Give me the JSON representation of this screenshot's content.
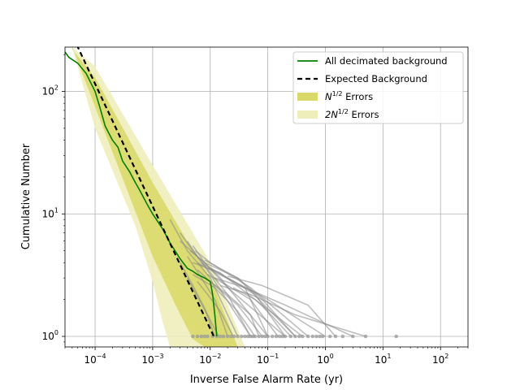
{
  "chart_data": {
    "type": "line",
    "xlabel": "Inverse False Alarm Rate (yr)",
    "ylabel": "Cumulative Number",
    "xscale": "log",
    "yscale": "log",
    "xlim": [
      3e-05,
      300
    ],
    "ylim": [
      0.82,
      230
    ],
    "grid": true,
    "legend_position": "top-right",
    "x_ticks": [
      {
        "value": 0.0001,
        "base": "10",
        "exp": "−4"
      },
      {
        "value": 0.001,
        "base": "10",
        "exp": "−3"
      },
      {
        "value": 0.01,
        "base": "10",
        "exp": "−2"
      },
      {
        "value": 0.1,
        "base": "10",
        "exp": "−1"
      },
      {
        "value": 1,
        "base": "10",
        "exp": "0"
      },
      {
        "value": 10,
        "base": "10",
        "exp": "1"
      },
      {
        "value": 100,
        "base": "10",
        "exp": "2"
      }
    ],
    "y_ticks": [
      {
        "value": 1,
        "base": "10",
        "exp": "0"
      },
      {
        "value": 10,
        "base": "10",
        "exp": "1"
      },
      {
        "value": 100,
        "base": "10",
        "exp": "2"
      }
    ],
    "legend": [
      {
        "label": "All decimated background",
        "kind": "line",
        "color": "#008000"
      },
      {
        "label": "Expected Background",
        "kind": "dashed",
        "color": "#000000"
      },
      {
        "base": "N",
        "exp": "1/2",
        "tail": " Errors",
        "kind": "band",
        "color": "#d9d96a"
      },
      {
        "base": "2N",
        "exp": "1/2",
        "tail": " Errors",
        "kind": "band",
        "color": "#eeeebb"
      }
    ],
    "series": [
      {
        "name": "All decimated background",
        "color": "#008000",
        "x": [
          3e-05,
          3.5e-05,
          5e-05,
          7e-05,
          0.0001,
          0.00012,
          0.00015,
          0.0002,
          0.00025,
          0.0003,
          0.0004,
          0.0005,
          0.0006,
          0.0008,
          0.001,
          0.0015,
          0.002,
          0.003,
          0.004,
          0.005,
          0.006,
          0.008,
          0.01,
          0.011,
          0.012,
          0.013
        ],
        "y": [
          210,
          190,
          170,
          140,
          100,
          75,
          52,
          40,
          35,
          27,
          22,
          18,
          15.5,
          12,
          10,
          7.5,
          5.8,
          4.3,
          3.6,
          3.4,
          3.2,
          3.0,
          2.8,
          2.2,
          1.5,
          1.0
        ]
      },
      {
        "name": "Expected Background",
        "color": "#000000",
        "x": [
          4.8e-05,
          0.012
        ],
        "y": [
          240,
          0.96
        ]
      }
    ],
    "error_bands": [
      {
        "label_key": "N",
        "color": "#d9d96a",
        "upper": {
          "x": [
            4e-05,
            0.0001,
            0.001,
            0.005,
            0.01,
            0.03
          ],
          "y": [
            220,
            130,
            18,
            5,
            3,
            0.82
          ]
        },
        "lower": {
          "x": [
            4e-05,
            0.0001,
            0.001,
            0.0025,
            0.005,
            0.008
          ],
          "y": [
            230,
            75,
            4.5,
            1.8,
            0.95,
            0.82
          ]
        }
      },
      {
        "label_key": "2N",
        "color": "#eeeebb",
        "upper": {
          "x": [
            4e-05,
            0.0001,
            0.001,
            0.005,
            0.01,
            0.04
          ],
          "y": [
            230,
            160,
            25,
            7,
            4,
            0.82
          ]
        },
        "lower": {
          "x": [
            4e-05,
            0.0001,
            0.0005,
            0.001,
            0.0015,
            0.002
          ],
          "y": [
            230,
            50,
            8,
            2.8,
            1.3,
            0.82
          ]
        }
      }
    ],
    "gray_curves": [
      {
        "x": [
          0.002,
          0.004,
          0.01,
          0.03
        ],
        "y": [
          9,
          5,
          3,
          1
        ]
      },
      {
        "x": [
          0.003,
          0.005,
          0.01,
          0.05
        ],
        "y": [
          7,
          5,
          3.2,
          1
        ]
      },
      {
        "x": [
          0.004,
          0.006,
          0.015,
          0.1
        ],
        "y": [
          6,
          4.5,
          3,
          1
        ]
      },
      {
        "x": [
          0.0045,
          0.008,
          0.02,
          0.2
        ],
        "y": [
          5,
          4,
          2.5,
          1
        ]
      },
      {
        "x": [
          0.003,
          0.006,
          0.02,
          0.05
        ],
        "y": [
          6,
          4.5,
          2.2,
          1
        ]
      },
      {
        "x": [
          0.005,
          0.008,
          0.03,
          0.3
        ],
        "y": [
          5.5,
          4,
          3,
          1
        ]
      },
      {
        "x": [
          0.0055,
          0.01,
          0.05,
          0.5
        ],
        "y": [
          5,
          4,
          2.5,
          1
        ]
      },
      {
        "x": [
          0.004,
          0.007,
          0.012,
          0.02
        ],
        "y": [
          4.5,
          3,
          2,
          1
        ]
      },
      {
        "x": [
          0.006,
          0.01,
          0.04,
          0.1
        ],
        "y": [
          4,
          3.5,
          2.5,
          1
        ]
      },
      {
        "x": [
          0.005,
          0.015,
          0.06,
          0.4
        ],
        "y": [
          4,
          3.3,
          2,
          1
        ]
      },
      {
        "x": [
          0.003,
          0.005,
          0.008,
          0.012
        ],
        "y": [
          4,
          2.6,
          1.7,
          1
        ]
      },
      {
        "x": [
          0.007,
          0.02,
          0.1,
          1
        ],
        "y": [
          4,
          3,
          2,
          1
        ]
      },
      {
        "x": [
          0.006,
          0.01,
          0.03,
          0.08
        ],
        "y": [
          3.5,
          2.8,
          1.8,
          1
        ]
      },
      {
        "x": [
          0.008,
          0.03,
          0.08,
          0.3
        ],
        "y": [
          4.2,
          3,
          2,
          1
        ]
      },
      {
        "x": [
          0.01,
          0.02,
          0.06,
          0.2
        ],
        "y": [
          3.6,
          3,
          2.2,
          1
        ]
      },
      {
        "x": [
          0.005,
          0.012,
          0.03,
          0.06
        ],
        "y": [
          3.2,
          2.5,
          1.6,
          1
        ]
      },
      {
        "x": [
          0.009,
          0.02,
          0.05,
          0.15
        ],
        "y": [
          3.2,
          2.6,
          2,
          1
        ]
      },
      {
        "x": [
          0.012,
          0.04,
          0.2,
          3
        ],
        "y": [
          3,
          2.5,
          1.8,
          1
        ]
      },
      {
        "x": [
          0.015,
          0.05,
          0.3,
          5
        ],
        "y": [
          2.6,
          2.2,
          1.5,
          1
        ]
      },
      {
        "x": [
          0.02,
          0.08,
          0.5,
          1.5
        ],
        "y": [
          3.1,
          2.6,
          1.8,
          1
        ]
      },
      {
        "x": [
          0.006,
          0.009,
          0.015,
          0.025
        ],
        "y": [
          2.8,
          2.2,
          1.6,
          1
        ]
      },
      {
        "x": [
          0.01,
          0.02,
          0.05,
          0.07
        ],
        "y": [
          2.8,
          2.2,
          1.5,
          1
        ]
      },
      {
        "x": [
          0.025,
          0.06,
          0.1,
          0.25
        ],
        "y": [
          2.5,
          2,
          1.6,
          1
        ]
      },
      {
        "x": [
          0.004,
          0.006,
          0.009,
          0.014
        ],
        "y": [
          3,
          2.1,
          1.5,
          1
        ]
      }
    ],
    "gray_points_x": [
      0.005,
      0.006,
      0.007,
      0.008,
      0.009,
      0.011,
      0.013,
      0.015,
      0.017,
      0.02,
      0.023,
      0.026,
      0.03,
      0.035,
      0.04,
      0.045,
      0.05,
      0.055,
      0.06,
      0.07,
      0.08,
      0.09,
      0.1,
      0.12,
      0.14,
      0.16,
      0.18,
      0.2,
      0.25,
      0.3,
      0.35,
      0.4,
      0.5,
      0.6,
      0.7,
      0.8,
      0.9,
      1.2,
      1.5,
      2.0,
      3.0,
      5.0,
      17.0
    ],
    "gray_points_y": 1
  }
}
